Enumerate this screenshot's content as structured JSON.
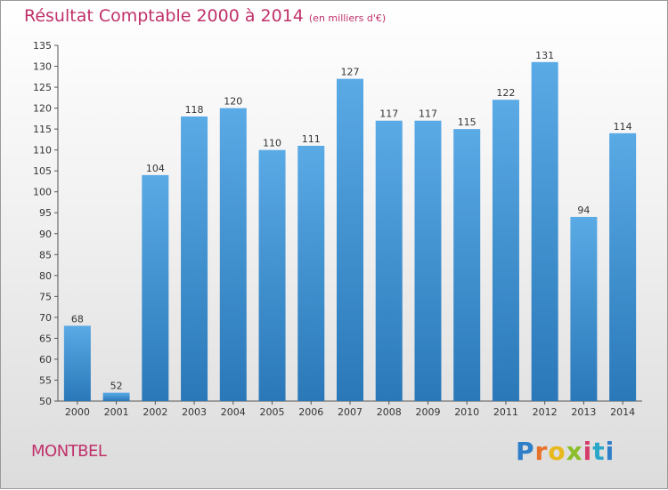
{
  "header": {
    "title": "Résultat Comptable 2000 à 2014",
    "subtitle": "(en milliers d'€)"
  },
  "footer": {
    "commune": "MONTBEL",
    "logo_text": "Proxiti"
  },
  "colors": {
    "bar_top": "#5aaae6",
    "bar_bottom": "#2a78b8",
    "accent": "#c0306a"
  },
  "chart_data": {
    "type": "bar",
    "title": "Résultat Comptable 2000 à 2014",
    "subtitle": "(en milliers d'€)",
    "categories": [
      "2000",
      "2001",
      "2002",
      "2003",
      "2004",
      "2005",
      "2006",
      "2007",
      "2008",
      "2009",
      "2010",
      "2011",
      "2012",
      "2013",
      "2014"
    ],
    "values": [
      68,
      52,
      104,
      118,
      120,
      110,
      111,
      127,
      117,
      117,
      115,
      122,
      131,
      94,
      114
    ],
    "ylim": [
      50,
      135
    ],
    "yticks": [
      50,
      55,
      60,
      65,
      70,
      75,
      80,
      85,
      90,
      95,
      100,
      105,
      110,
      115,
      120,
      125,
      130,
      135
    ],
    "grid": false,
    "xlabel": "",
    "ylabel": ""
  }
}
